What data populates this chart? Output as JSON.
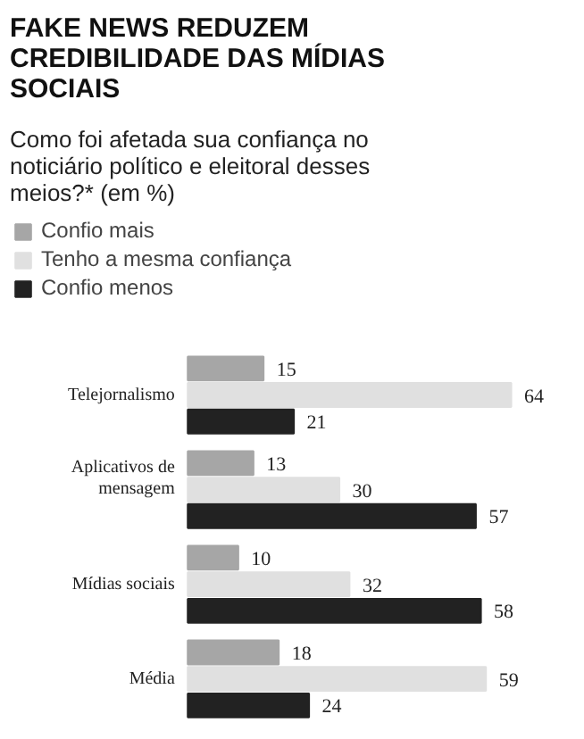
{
  "chart_data": {
    "type": "bar",
    "orientation": "horizontal",
    "title": "FAKE NEWS REDUZEM CREDIBILIDADE DAS MÍDIAS SOCIAIS",
    "subtitle": "Como foi afetada sua confiança no noticiário político e eleitoral desses meios?* (em %)",
    "categories": [
      "Telejornalismo",
      "Aplicativos de mensagem",
      "Mídias sociais",
      "Média"
    ],
    "series": [
      {
        "name": "Confio mais",
        "color": "#a6a6a6",
        "values": [
          15,
          13,
          10,
          18
        ]
      },
      {
        "name": "Tenho a mesma confiança",
        "color": "#e0e0e0",
        "values": [
          64,
          30,
          32,
          59
        ]
      },
      {
        "name": "Confio menos",
        "color": "#222222",
        "values": [
          21,
          57,
          58,
          24
        ]
      }
    ],
    "data_labels": true,
    "legend": "top left",
    "tick_labels": "y",
    "grid": false
  }
}
